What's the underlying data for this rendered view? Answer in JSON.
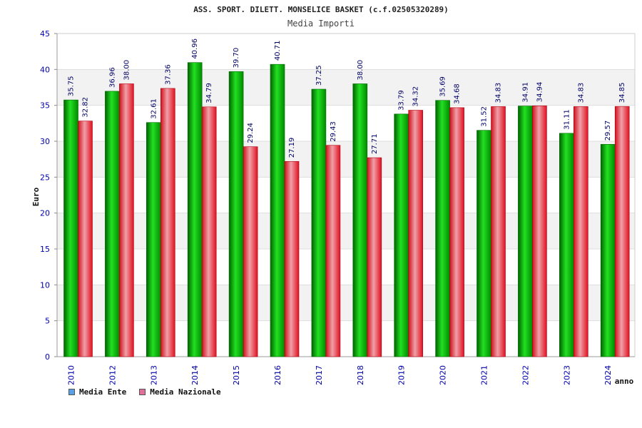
{
  "chart_data": {
    "type": "bar",
    "title": "ASS. SPORT. DILETT. MONSELICE BASKET (c.f.02505320289)",
    "subtitle": "Media Importi",
    "ylabel": "Euro",
    "xlabel": "anno",
    "ylim": [
      0,
      45
    ],
    "yticks": [
      "0",
      "5",
      "10",
      "15",
      "20",
      "25",
      "30",
      "35",
      "40",
      "45"
    ],
    "categories": [
      "2010",
      "2012",
      "2013",
      "2014",
      "2015",
      "2016",
      "2017",
      "2018",
      "2019",
      "2020",
      "2021",
      "2022",
      "2023",
      "2024"
    ],
    "series": [
      {
        "name": "Media Ente",
        "color": "#00b400",
        "legend_color": "#5aa0e6",
        "values": [
          35.75,
          36.96,
          32.61,
          40.96,
          39.7,
          40.71,
          37.25,
          38.0,
          33.79,
          35.69,
          31.52,
          34.91,
          31.11,
          29.57
        ],
        "labels": [
          "35.75",
          "36.96",
          "32.61",
          "40.96",
          "39.70",
          "40.71",
          "37.25",
          "38.00",
          "33.79",
          "35.69",
          "31.52",
          "34.91",
          "31.11",
          "29.57"
        ]
      },
      {
        "name": "Media Nazionale",
        "color": "#e8202c",
        "legend_color": "#e0709a",
        "values": [
          32.82,
          38.0,
          37.36,
          34.79,
          29.24,
          27.19,
          29.43,
          27.71,
          34.32,
          34.68,
          34.83,
          34.94,
          34.83,
          34.85
        ],
        "labels": [
          "32.82",
          "38.00",
          "37.36",
          "34.79",
          "29.24",
          "27.19",
          "29.43",
          "27.71",
          "34.32",
          "34.68",
          "34.83",
          "34.94",
          "34.83",
          "34.85"
        ]
      }
    ],
    "grid": true,
    "legend_position": "bottom-left"
  }
}
